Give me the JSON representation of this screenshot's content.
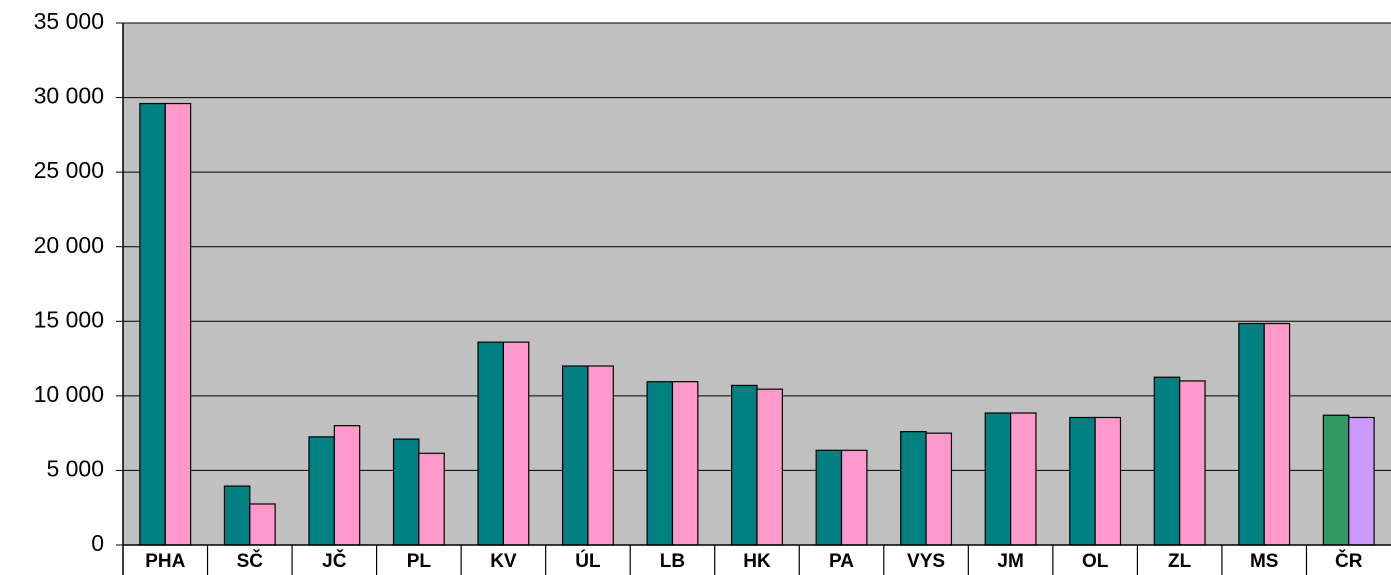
{
  "chart_data": {
    "type": "bar",
    "categories": [
      "PHA",
      "SČ",
      "JČ",
      "PL",
      "KV",
      "ÚL",
      "LB",
      "HK",
      "PA",
      "VYS",
      "JM",
      "OL",
      "ZL",
      "MS",
      "ČR"
    ],
    "series": [
      {
        "colors": [
          "#008080",
          "#008080",
          "#008080",
          "#008080",
          "#008080",
          "#008080",
          "#008080",
          "#008080",
          "#008080",
          "#008080",
          "#008080",
          "#008080",
          "#008080",
          "#008080",
          "#339966"
        ],
        "values": [
          29600,
          3950,
          7250,
          7100,
          13600,
          12000,
          10950,
          10700,
          6350,
          7600,
          8850,
          8550,
          11250,
          14850,
          8700
        ]
      },
      {
        "colors": [
          "#ff99cc",
          "#ff99cc",
          "#ff99cc",
          "#ff99cc",
          "#ff99cc",
          "#ff99cc",
          "#ff99cc",
          "#ff99cc",
          "#ff99cc",
          "#ff99cc",
          "#ff99cc",
          "#ff99cc",
          "#ff99cc",
          "#ff99cc",
          "#cc99ff"
        ],
        "values": [
          29600,
          2750,
          8000,
          6150,
          13600,
          12000,
          10950,
          10450,
          6350,
          7500,
          8850,
          8550,
          11000,
          14850,
          8550
        ]
      }
    ],
    "ylim": [
      0,
      35000
    ],
    "yticks": [
      0,
      {
        "value": 5000,
        "label": "5 000"
      },
      {
        "value": 10000,
        "label": "10 000"
      },
      {
        "value": 15000,
        "label": "15 000"
      },
      {
        "value": 20000,
        "label": "20 000"
      },
      {
        "value": 25000,
        "label": "25 000"
      },
      {
        "value": 30000,
        "label": "30 000"
      },
      {
        "value": 35000,
        "label": "35 000"
      }
    ],
    "grid": true,
    "background": "#c0c0c0"
  }
}
